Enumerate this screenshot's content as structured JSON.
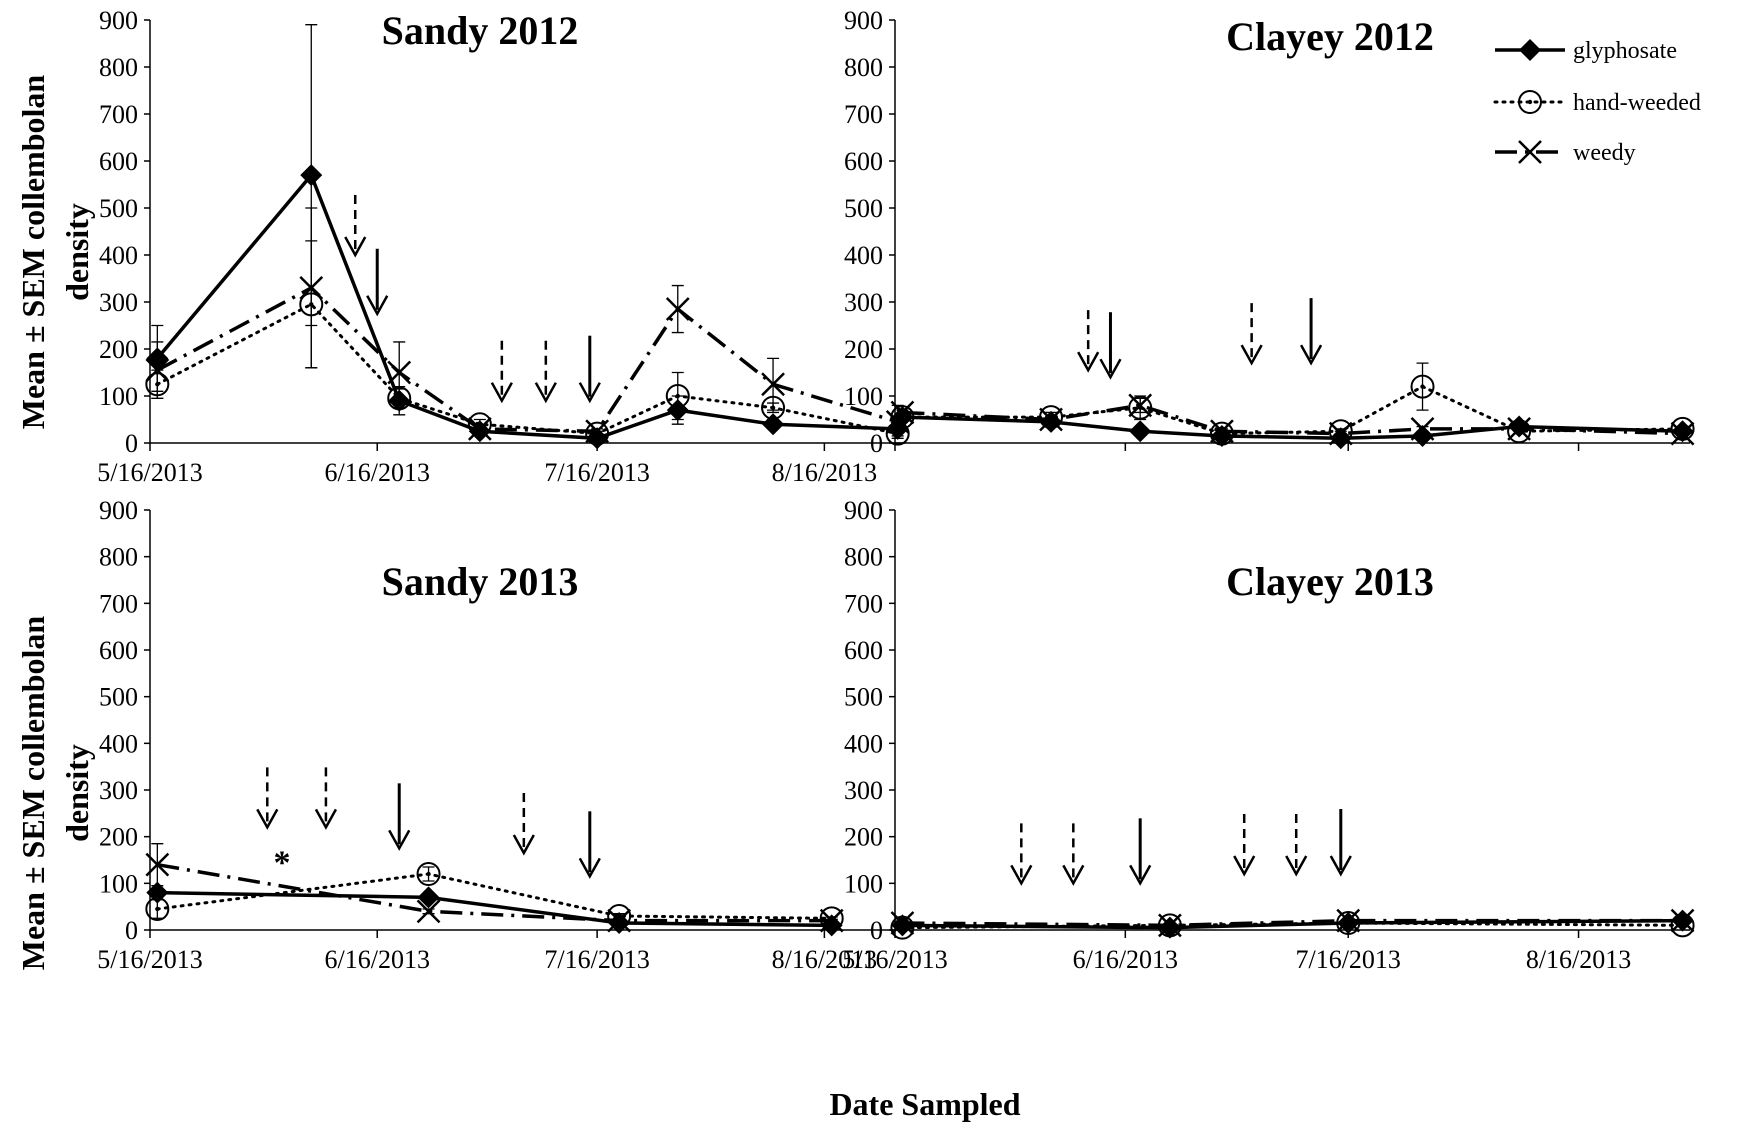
{
  "figure": {
    "xlabel": "Date Sampled",
    "ylabel_line1": "Mean ± SEM collembolan",
    "ylabel_line2": "density",
    "legend": [
      {
        "label": "glyphosate",
        "style": "solid",
        "marker": "diamond"
      },
      {
        "label": "hand-weeded",
        "style": "dotted",
        "marker": "circle-dot"
      },
      {
        "label": "weedy",
        "style": "dashdot",
        "marker": "x"
      }
    ]
  },
  "chart_data": [
    {
      "type": "line",
      "title": "Sandy 2012",
      "ylim": [
        0,
        900
      ],
      "yticks": [
        0,
        100,
        200,
        300,
        400,
        500,
        600,
        700,
        800,
        900
      ],
      "xlim": [
        "2013-05-16",
        "2013-08-27"
      ],
      "xticks": [
        "5/16/2013",
        "6/16/2013",
        "7/16/2013",
        "8/16/2013"
      ],
      "series": [
        {
          "name": "glyphosate",
          "x": [
            "2013-05-17",
            "2013-06-07",
            "2013-06-19",
            "2013-06-30",
            "2013-07-16",
            "2013-07-27",
            "2013-08-09",
            "2013-08-26"
          ],
          "values": [
            180,
            570,
            90,
            25,
            10,
            70,
            40,
            30
          ],
          "error": [
            70,
            320,
            30,
            5,
            5,
            30,
            10,
            5
          ]
        },
        {
          "name": "hand-weeded",
          "x": [
            "2013-05-17",
            "2013-06-07",
            "2013-06-19",
            "2013-06-30",
            "2013-07-16",
            "2013-07-27",
            "2013-08-09",
            "2013-08-26"
          ],
          "values": [
            125,
            295,
            95,
            40,
            20,
            100,
            75,
            20
          ],
          "error": [
            30,
            135,
            20,
            10,
            5,
            50,
            10,
            5
          ]
        },
        {
          "name": "weedy",
          "x": [
            "2013-05-17",
            "2013-06-07",
            "2013-06-19",
            "2013-06-30",
            "2013-07-16",
            "2013-07-27",
            "2013-08-09",
            "2013-08-26"
          ],
          "values": [
            155,
            330,
            150,
            30,
            25,
            285,
            125,
            45
          ],
          "error": [
            60,
            170,
            65,
            5,
            5,
            50,
            55,
            35
          ]
        }
      ],
      "arrows": [
        {
          "x": "2013-06-13",
          "type": "dashed",
          "tip": 400
        },
        {
          "x": "2013-06-16",
          "type": "solid",
          "tip": 275
        },
        {
          "x": "2013-07-03",
          "type": "dashed",
          "tip": 90
        },
        {
          "x": "2013-07-09",
          "type": "dashed",
          "tip": 90
        },
        {
          "x": "2013-07-15",
          "type": "solid",
          "tip": 90
        }
      ]
    },
    {
      "type": "line",
      "title": "Clayey 2012",
      "ylim": [
        0,
        900
      ],
      "yticks": [
        0,
        100,
        200,
        300,
        400,
        500,
        600,
        700,
        800,
        900
      ],
      "xlim": [
        "2013-05-16",
        "2013-08-31"
      ],
      "xticks": [],
      "series": [
        {
          "name": "glyphosate",
          "x": [
            "2013-05-17",
            "2013-06-06",
            "2013-06-18",
            "2013-06-29",
            "2013-07-15",
            "2013-07-26",
            "2013-08-08",
            "2013-08-30"
          ],
          "values": [
            55,
            45,
            25,
            15,
            10,
            15,
            35,
            25
          ],
          "error": [
            5,
            5,
            5,
            3,
            3,
            3,
            5,
            3
          ]
        },
        {
          "name": "hand-weeded",
          "x": [
            "2013-05-17",
            "2013-06-06",
            "2013-06-18",
            "2013-06-29",
            "2013-07-15",
            "2013-07-26",
            "2013-08-08",
            "2013-08-30"
          ],
          "values": [
            55,
            55,
            75,
            20,
            25,
            120,
            25,
            30
          ],
          "error": [
            5,
            10,
            25,
            5,
            5,
            50,
            5,
            5
          ]
        },
        {
          "name": "weedy",
          "x": [
            "2013-05-17",
            "2013-06-06",
            "2013-06-18",
            "2013-06-29",
            "2013-07-15",
            "2013-07-26",
            "2013-08-08",
            "2013-08-30"
          ],
          "values": [
            65,
            50,
            80,
            25,
            20,
            30,
            30,
            20
          ],
          "error": [
            5,
            5,
            15,
            5,
            5,
            5,
            5,
            3
          ]
        }
      ],
      "arrows": [
        {
          "x": "2013-06-11",
          "type": "dashed",
          "tip": 155
        },
        {
          "x": "2013-06-14",
          "type": "solid",
          "tip": 140
        },
        {
          "x": "2013-07-03",
          "type": "dashed",
          "tip": 170
        },
        {
          "x": "2013-07-11",
          "type": "solid",
          "tip": 170
        }
      ]
    },
    {
      "type": "line",
      "title": "Sandy 2013",
      "ylim": [
        0,
        900
      ],
      "yticks": [
        0,
        100,
        200,
        300,
        400,
        500,
        600,
        700,
        800,
        900
      ],
      "xlim": [
        "2013-05-16",
        "2013-08-27"
      ],
      "xticks": [
        "5/16/2013",
        "6/16/2013",
        "7/16/2013",
        "8/16/2013"
      ],
      "series": [
        {
          "name": "glyphosate",
          "x": [
            "2013-05-17",
            "2013-06-23",
            "2013-07-19",
            "2013-08-17"
          ],
          "values": [
            80,
            70,
            15,
            10
          ],
          "error": [
            5,
            5,
            3,
            3
          ]
        },
        {
          "name": "hand-weeded",
          "x": [
            "2013-05-17",
            "2013-06-23",
            "2013-07-19",
            "2013-08-17"
          ],
          "values": [
            45,
            120,
            30,
            25
          ],
          "error": [
            20,
            15,
            5,
            3
          ]
        },
        {
          "name": "weedy",
          "x": [
            "2013-05-17",
            "2013-06-23",
            "2013-07-19",
            "2013-08-17"
          ],
          "values": [
            140,
            40,
            20,
            20
          ],
          "error": [
            45,
            5,
            5,
            3
          ]
        }
      ],
      "arrows": [
        {
          "x": "2013-06-01",
          "type": "dashed",
          "tip": 220
        },
        {
          "x": "2013-06-09",
          "type": "dashed",
          "tip": 220
        },
        {
          "x": "2013-06-19",
          "type": "solid",
          "tip": 175
        },
        {
          "x": "2013-07-06",
          "type": "dashed",
          "tip": 165
        },
        {
          "x": "2013-07-15",
          "type": "solid",
          "tip": 115
        }
      ],
      "annotations": [
        {
          "text": "*",
          "x": "2013-06-03",
          "y": 155
        }
      ]
    },
    {
      "type": "line",
      "title": "Clayey 2013",
      "ylim": [
        0,
        900
      ],
      "yticks": [
        0,
        100,
        200,
        300,
        400,
        500,
        600,
        700,
        800,
        900
      ],
      "xlim": [
        "2013-05-16",
        "2013-08-31"
      ],
      "xticks": [
        "5/16/2013",
        "6/16/2013",
        "7/16/2013",
        "8/16/2013"
      ],
      "series": [
        {
          "name": "glyphosate",
          "x": [
            "2013-05-17",
            "2013-06-22",
            "2013-07-16",
            "2013-08-30"
          ],
          "values": [
            10,
            5,
            15,
            20
          ],
          "error": [
            3,
            3,
            3,
            3
          ]
        },
        {
          "name": "hand-weeded",
          "x": [
            "2013-05-17",
            "2013-06-22",
            "2013-07-16",
            "2013-08-30"
          ],
          "values": [
            5,
            10,
            15,
            10
          ],
          "error": [
            3,
            3,
            3,
            3
          ]
        },
        {
          "name": "weedy",
          "x": [
            "2013-05-17",
            "2013-06-22",
            "2013-07-16",
            "2013-08-30"
          ],
          "values": [
            15,
            10,
            20,
            20
          ],
          "error": [
            3,
            3,
            3,
            3
          ]
        }
      ],
      "arrows": [
        {
          "x": "2013-06-02",
          "type": "dashed",
          "tip": 100
        },
        {
          "x": "2013-06-09",
          "type": "dashed",
          "tip": 100
        },
        {
          "x": "2013-06-18",
          "type": "solid",
          "tip": 100
        },
        {
          "x": "2013-07-02",
          "type": "dashed",
          "tip": 120
        },
        {
          "x": "2013-07-09",
          "type": "dashed",
          "tip": 120
        },
        {
          "x": "2013-07-15",
          "type": "solid",
          "tip": 120
        }
      ]
    }
  ]
}
